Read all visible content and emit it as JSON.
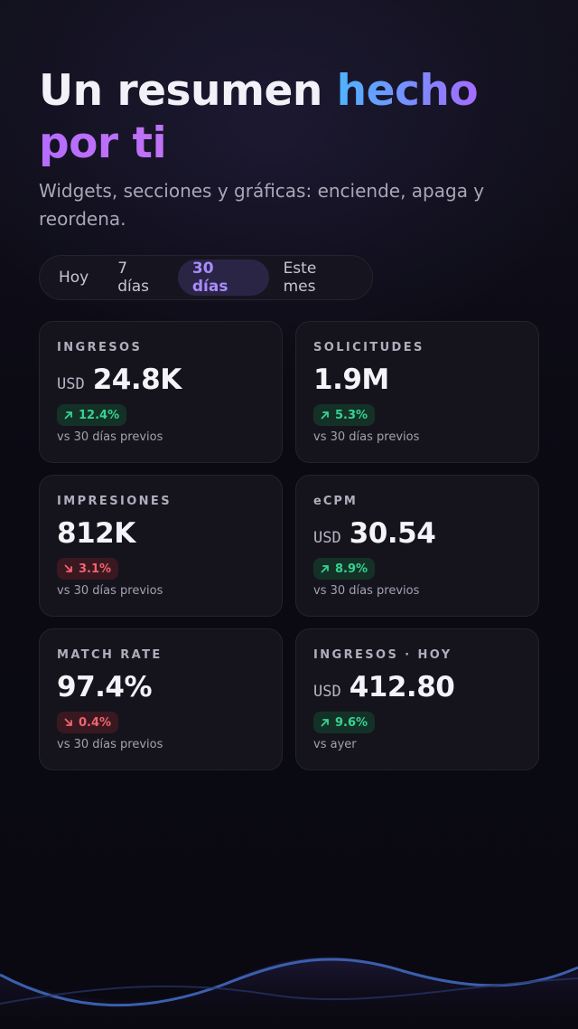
{
  "hero": {
    "title_part1": "Un resumen ",
    "title_part2": "hecho",
    "title_part3": "por ti",
    "subtitle": "Widgets, secciones y gráficas: enciende, apaga y reordena."
  },
  "period_selector": {
    "options": [
      "Hoy",
      "7 días",
      "30 días",
      "Este mes"
    ],
    "selected": "30 días"
  },
  "cards": [
    {
      "label": "INGRESOS",
      "currency": "USD",
      "value": "24.8K",
      "trend": "up",
      "delta": "12.4%",
      "compare": "vs 30 días previos"
    },
    {
      "label": "SOLICITUDES",
      "currency": "",
      "value": "1.9M",
      "trend": "up",
      "delta": "5.3%",
      "compare": "vs 30 días previos"
    },
    {
      "label": "IMPRESIONES",
      "currency": "",
      "value": "812K",
      "trend": "down",
      "delta": "3.1%",
      "compare": "vs 30 días previos"
    },
    {
      "label": "eCPM",
      "currency": "USD",
      "value": "30.54",
      "trend": "up",
      "delta": "8.9%",
      "compare": "vs 30 días previos"
    },
    {
      "label": "MATCH RATE",
      "currency": "",
      "value": "97.4%",
      "trend": "down",
      "delta": "0.4%",
      "compare": "vs 30 días previos"
    },
    {
      "label": "INGRESOS · HOY",
      "currency": "USD",
      "value": "412.80",
      "trend": "up",
      "delta": "9.6%",
      "compare": "vs ayer"
    }
  ],
  "colors": {
    "background": "#0b0a13",
    "card": "#15141d",
    "accent": "#a98bff",
    "positive": "#36d391",
    "negative": "#f0646e",
    "wave": "#3b5fae"
  },
  "icons": {
    "trend_up": "arrow-up-right-icon",
    "trend_down": "arrow-down-right-icon"
  }
}
